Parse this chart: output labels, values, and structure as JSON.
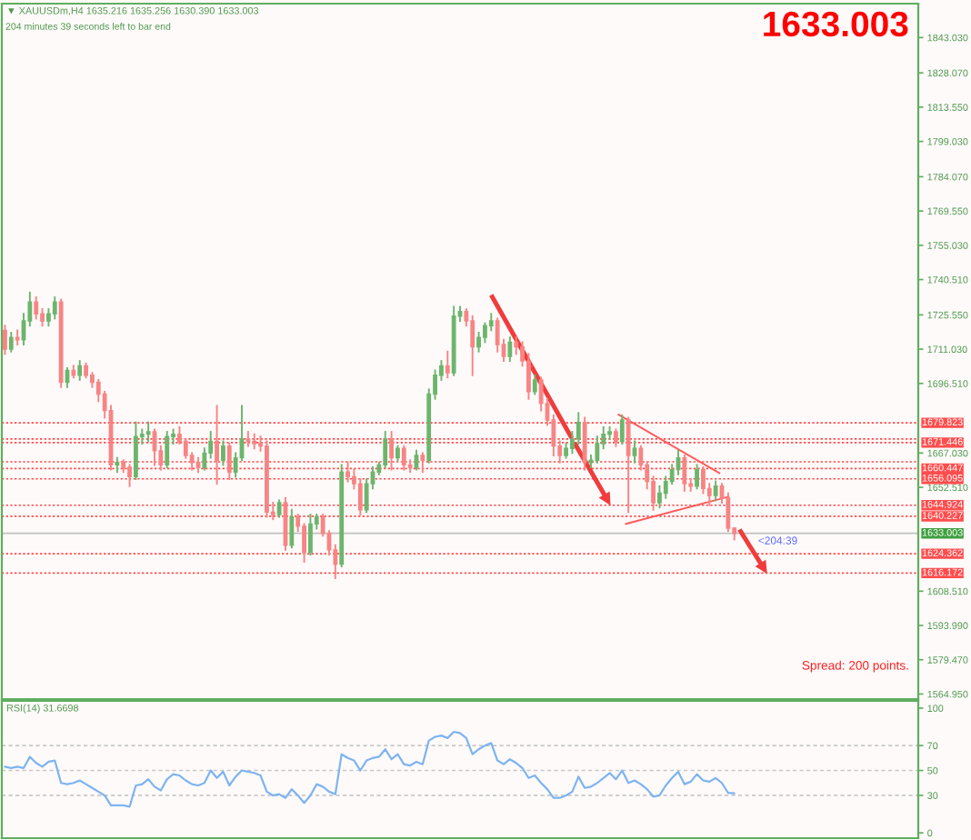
{
  "chart_data": [
    {
      "type": "candlestick",
      "title": "▼ XAUUSDm,H4 1635.216 1635.256 1630.390 1633.003",
      "subtitle": "204 minutes 39 seconds left to bar end",
      "categories": [
        null,
        null,
        null,
        null,
        null,
        null,
        null,
        null,
        null,
        null,
        null,
        null,
        null,
        null,
        null,
        null,
        null,
        null,
        null,
        null,
        null,
        null,
        null,
        null,
        null,
        null,
        null,
        null,
        null,
        null,
        null,
        null,
        null,
        null,
        null,
        null,
        null,
        null,
        null,
        null,
        null,
        null,
        null,
        null,
        null,
        null,
        null,
        null,
        null,
        null,
        null,
        null,
        null,
        null,
        null,
        null,
        null,
        null,
        null,
        null,
        null,
        null,
        null,
        null,
        null,
        null,
        null,
        null,
        null,
        null,
        null,
        null,
        null,
        null,
        null,
        null,
        null,
        null,
        null,
        null,
        null,
        null,
        null,
        null,
        null,
        null,
        null,
        null,
        null,
        null,
        null,
        null,
        null,
        null,
        null,
        null,
        null,
        null,
        null,
        null,
        null,
        null,
        null,
        null,
        null,
        null,
        null,
        null,
        null,
        null,
        null,
        null,
        null,
        null,
        null,
        null,
        null,
        null,
        null,
        null,
        null,
        null,
        null,
        null,
        null,
        null,
        null,
        null,
        null,
        null,
        null,
        null,
        null,
        null,
        null,
        null,
        null,
        null,
        null,
        null,
        null,
        null,
        null,
        null,
        null,
        null,
        null
      ],
      "ohlc": [
        [
          1719,
          1721,
          1709,
          1711
        ],
        [
          1711,
          1718,
          1710,
          1716
        ],
        [
          1716,
          1719,
          1713,
          1715
        ],
        [
          1715,
          1726,
          1713,
          1723
        ],
        [
          1723,
          1735,
          1721,
          1731
        ],
        [
          1731,
          1733,
          1724,
          1726
        ],
        [
          1726,
          1728,
          1721,
          1723
        ],
        [
          1723,
          1728,
          1721,
          1726
        ],
        [
          1726,
          1733,
          1724,
          1731
        ],
        [
          1731,
          1732,
          1695,
          1697
        ],
        [
          1697,
          1703,
          1695,
          1702
        ],
        [
          1702,
          1704,
          1699,
          1700
        ],
        [
          1700,
          1706,
          1698,
          1704
        ],
        [
          1704,
          1705,
          1699,
          1700
        ],
        [
          1700,
          1701,
          1695,
          1697
        ],
        [
          1697,
          1698,
          1689,
          1692
        ],
        [
          1692,
          1693,
          1682,
          1685
        ],
        [
          1685,
          1687,
          1660,
          1662
        ],
        [
          1662,
          1665,
          1659,
          1663
        ],
        [
          1663,
          1664,
          1659,
          1661
        ],
        [
          1661,
          1662,
          1653,
          1657
        ],
        [
          1657,
          1680,
          1656,
          1674
        ],
        [
          1674,
          1677,
          1671,
          1675
        ],
        [
          1675,
          1680,
          1672,
          1676
        ],
        [
          1676,
          1677,
          1662,
          1668
        ],
        [
          1668,
          1670,
          1660,
          1662
        ],
        [
          1662,
          1676,
          1661,
          1674
        ],
        [
          1674,
          1677,
          1671,
          1675
        ],
        [
          1675,
          1678,
          1671,
          1672
        ],
        [
          1672,
          1673,
          1665,
          1666
        ],
        [
          1666,
          1667,
          1660,
          1663
        ],
        [
          1663,
          1665,
          1659,
          1661
        ],
        [
          1661,
          1669,
          1660,
          1667
        ],
        [
          1667,
          1676,
          1665,
          1672
        ],
        [
          1672,
          1687,
          1654,
          1664
        ],
        [
          1664,
          1672,
          1662,
          1670
        ],
        [
          1670,
          1671,
          1656,
          1659
        ],
        [
          1659,
          1667,
          1657,
          1665
        ],
        [
          1665,
          1687,
          1664,
          1673
        ],
        [
          1673,
          1676,
          1670,
          1672
        ],
        [
          1672,
          1675,
          1669,
          1671
        ],
        [
          1671,
          1674,
          1668,
          1670
        ],
        [
          1670,
          1672,
          1640,
          1642
        ],
        [
          1642,
          1646,
          1639,
          1641
        ],
        [
          1641,
          1647,
          1640,
          1646
        ],
        [
          1646,
          1648,
          1626,
          1628
        ],
        [
          1628,
          1643,
          1627,
          1640
        ],
        [
          1640,
          1641,
          1634,
          1636
        ],
        [
          1636,
          1637,
          1621,
          1625
        ],
        [
          1625,
          1641,
          1624,
          1637
        ],
        [
          1637,
          1641,
          1635,
          1640
        ],
        [
          1640,
          1641,
          1632,
          1633
        ],
        [
          1633,
          1634,
          1624,
          1626
        ],
        [
          1626,
          1628,
          1614,
          1620
        ],
        [
          1620,
          1662,
          1619,
          1659
        ],
        [
          1659,
          1663,
          1655,
          1657
        ],
        [
          1657,
          1660,
          1652,
          1654
        ],
        [
          1654,
          1656,
          1641,
          1643
        ],
        [
          1643,
          1656,
          1642,
          1654
        ],
        [
          1654,
          1661,
          1652,
          1659
        ],
        [
          1659,
          1663,
          1658,
          1662
        ],
        [
          1662,
          1676,
          1661,
          1673
        ],
        [
          1673,
          1676,
          1660,
          1665
        ],
        [
          1665,
          1670,
          1664,
          1669
        ],
        [
          1669,
          1670,
          1660,
          1662
        ],
        [
          1662,
          1664,
          1659,
          1661
        ],
        [
          1661,
          1668,
          1660,
          1666
        ],
        [
          1666,
          1667,
          1659,
          1664
        ],
        [
          1664,
          1694,
          1663,
          1692
        ],
        [
          1692,
          1702,
          1690,
          1700
        ],
        [
          1700,
          1706,
          1698,
          1704
        ],
        [
          1704,
          1710,
          1699,
          1701
        ],
        [
          1701,
          1729,
          1700,
          1725
        ],
        [
          1725,
          1729,
          1723,
          1727
        ],
        [
          1727,
          1728,
          1721,
          1723
        ],
        [
          1723,
          1725,
          1700,
          1712
        ],
        [
          1712,
          1718,
          1710,
          1716
        ],
        [
          1716,
          1722,
          1714,
          1721
        ],
        [
          1721,
          1726,
          1719,
          1723
        ],
        [
          1723,
          1724,
          1710,
          1713
        ],
        [
          1713,
          1715,
          1706,
          1708
        ],
        [
          1708,
          1716,
          1706,
          1714
        ],
        [
          1714,
          1716,
          1709,
          1712
        ],
        [
          1712,
          1714,
          1704,
          1706
        ],
        [
          1706,
          1709,
          1690,
          1693
        ],
        [
          1693,
          1700,
          1692,
          1698
        ],
        [
          1698,
          1699,
          1685,
          1688
        ],
        [
          1688,
          1690,
          1679,
          1681
        ],
        [
          1681,
          1683,
          1666,
          1670
        ],
        [
          1670,
          1672,
          1663,
          1666
        ],
        [
          1666,
          1671,
          1665,
          1669
        ],
        [
          1669,
          1676,
          1667,
          1673
        ],
        [
          1673,
          1684,
          1671,
          1680
        ],
        [
          1680,
          1682,
          1660,
          1663
        ],
        [
          1663,
          1666,
          1661,
          1664
        ],
        [
          1664,
          1674,
          1663,
          1671
        ],
        [
          1671,
          1678,
          1669,
          1675
        ],
        [
          1675,
          1678,
          1673,
          1676
        ],
        [
          1676,
          1677,
          1670,
          1672
        ],
        [
          1672,
          1683,
          1671,
          1681
        ],
        [
          1681,
          1682,
          1642,
          1666
        ],
        [
          1666,
          1672,
          1663,
          1669
        ],
        [
          1669,
          1670,
          1660,
          1662
        ],
        [
          1662,
          1663,
          1652,
          1655
        ],
        [
          1655,
          1657,
          1643,
          1646
        ],
        [
          1646,
          1653,
          1644,
          1650
        ],
        [
          1650,
          1657,
          1648,
          1655
        ],
        [
          1655,
          1662,
          1654,
          1660
        ],
        [
          1660,
          1668,
          1658,
          1665
        ],
        [
          1665,
          1666,
          1651,
          1654
        ],
        [
          1654,
          1656,
          1651,
          1653
        ],
        [
          1653,
          1662,
          1652,
          1660
        ],
        [
          1660,
          1661,
          1650,
          1652
        ],
        [
          1652,
          1654,
          1645,
          1649
        ],
        [
          1649,
          1655,
          1647,
          1653
        ],
        [
          1653,
          1654,
          1646,
          1648
        ],
        [
          1648,
          1650,
          1634,
          1635.216
        ],
        [
          1635.216,
          1635.256,
          1630.39,
          1633.003
        ],
        null,
        null,
        null,
        null,
        null,
        null,
        null,
        null,
        null,
        null,
        null,
        null,
        null,
        null,
        null,
        null,
        null,
        null,
        null,
        null,
        null,
        null,
        null,
        null,
        null,
        null,
        null,
        null,
        null
      ],
      "colors": [
        "#f78585",
        "#6db56d",
        "#f78585",
        "#6db56d",
        "#6db56d",
        "#f78585",
        "#f78585",
        "#6db56d",
        "#6db56d",
        "#f78585",
        "#6db56d",
        "#f78585",
        "#6db56d",
        "#f78585",
        "#f78585",
        "#f78585",
        "#f78585",
        "#f78585",
        "#6db56d",
        "#f78585",
        "#f78585",
        "#6db56d",
        "#6db56d",
        "#6db56d",
        "#f78585",
        "#f78585",
        "#6db56d",
        "#6db56d",
        "#f78585",
        "#f78585",
        "#f78585",
        "#f78585",
        "#6db56d",
        "#6db56d",
        "#f78585",
        "#6db56d",
        "#f78585",
        "#6db56d",
        "#6db56d",
        "#f78585",
        "#f78585",
        "#f78585",
        "#f78585",
        "#f78585",
        "#6db56d",
        "#f78585",
        "#6db56d",
        "#f78585",
        "#f78585",
        "#6db56d",
        "#6db56d",
        "#f78585",
        "#f78585",
        "#f78585",
        "#6db56d",
        "#f78585",
        "#f78585",
        "#f78585",
        "#6db56d",
        "#6db56d",
        "#6db56d",
        "#6db56d",
        "#f78585",
        "#6db56d",
        "#f78585",
        "#f78585",
        "#6db56d",
        "#f78585",
        "#6db56d",
        "#6db56d",
        "#6db56d",
        "#f78585",
        "#6db56d",
        "#6db56d",
        "#f78585",
        "#f78585",
        "#6db56d",
        "#6db56d",
        "#6db56d",
        "#f78585",
        "#f78585",
        "#6db56d",
        "#f78585",
        "#f78585",
        "#f78585",
        "#6db56d",
        "#f78585",
        "#f78585",
        "#f78585",
        "#f78585",
        "#6db56d",
        "#6db56d",
        "#6db56d",
        "#f78585",
        "#6db56d",
        "#6db56d",
        "#6db56d",
        "#6db56d",
        "#f78585",
        "#6db56d",
        "#f78585",
        "#6db56d",
        "#f78585",
        "#f78585",
        "#f78585",
        "#6db56d",
        "#6db56d",
        "#6db56d",
        "#6db56d",
        "#f78585",
        "#f78585",
        "#6db56d",
        "#f78585",
        "#f78585",
        "#6db56d",
        "#f78585",
        "#f78585",
        "#f78585",
        null,
        null,
        null,
        null,
        null,
        null,
        null,
        null,
        null,
        null,
        null,
        null,
        null,
        null,
        null,
        null,
        null,
        null,
        null,
        null,
        null,
        null,
        null,
        null,
        null,
        null,
        null,
        null,
        null
      ],
      "ylim": [
        1562.8,
        1857.4
      ],
      "yticks": [
        {
          "value": 1843.03,
          "label": "1843.030"
        },
        {
          "value": 1828.07,
          "label": "1828.070"
        },
        {
          "value": 1813.55,
          "label": "1813.550"
        },
        {
          "value": 1799.03,
          "label": "1799.030"
        },
        {
          "value": 1784.07,
          "label": "1784.070"
        },
        {
          "value": 1769.55,
          "label": "1769.550"
        },
        {
          "value": 1755.03,
          "label": "1755.030"
        },
        {
          "value": 1740.51,
          "label": "1740.510"
        },
        {
          "value": 1725.55,
          "label": "1725.550"
        },
        {
          "value": 1711.03,
          "label": "1711.030"
        },
        {
          "value": 1696.51,
          "label": "1696.510"
        },
        {
          "value": 1667.03,
          "label": "1667.030"
        },
        {
          "value": 1652.51,
          "label": "1652.510"
        },
        {
          "value": 1608.51,
          "label": "1608.510"
        },
        {
          "value": 1593.99,
          "label": "1593.990"
        },
        {
          "value": 1579.47,
          "label": "1579.470"
        },
        {
          "value": 1564.95,
          "label": "1564.950"
        }
      ],
      "tick_labels": "y",
      "ref_lines": [
        {
          "axis": "y",
          "value": 1679.823,
          "label": "1679.823",
          "color": "#ff4d4d",
          "line_style": "dotted"
        },
        {
          "axis": "y",
          "value": 1673.0,
          "color": "#ff4d4d",
          "line_style": "dotted"
        },
        {
          "axis": "y",
          "value": 1671.446,
          "label": "1671.446",
          "color": "#ff4d4d",
          "line_style": "dotted"
        },
        {
          "axis": "y",
          "value": 1663.3,
          "color": "#ff4d4d",
          "line_style": "dotted"
        },
        {
          "axis": "y",
          "value": 1660.447,
          "label": "1660.447",
          "color": "#ff4d4d",
          "line_style": "dotted"
        },
        {
          "axis": "y",
          "value": 1656.095,
          "label": "1656.095",
          "color": "#ff4d4d",
          "line_style": "dotted"
        },
        {
          "axis": "y",
          "value": 1644.924,
          "label": "1644.924",
          "color": "#ff4d4d",
          "line_style": "dotted"
        },
        {
          "axis": "y",
          "value": 1640.227,
          "label": "1640.227",
          "color": "#ff4d4d",
          "line_style": "dotted"
        },
        {
          "axis": "y",
          "value": 1633.003,
          "label": "1633.003",
          "color": "#c0c0c0",
          "line_style": "solid"
        },
        {
          "axis": "y",
          "value": 1624.362,
          "label": "1624.362",
          "color": "#ff4d4d",
          "line_style": "dotted"
        },
        {
          "axis": "y",
          "value": 1616.172,
          "label": "1616.172",
          "color": "#ff4d4d",
          "line_style": "dotted"
        }
      ],
      "annotations": [
        "1633.003",
        "<204:39",
        "Spread: 200 points."
      ]
    },
    {
      "type": "line",
      "title": "RSI(14) 31.6698",
      "categories": [
        null,
        null,
        null,
        null,
        null,
        null,
        null,
        null,
        null,
        null,
        null,
        null,
        null,
        null,
        null,
        null,
        null,
        null,
        null,
        null,
        null,
        null,
        null,
        null,
        null,
        null,
        null,
        null,
        null,
        null,
        null,
        null,
        null,
        null,
        null,
        null,
        null,
        null,
        null,
        null,
        null,
        null,
        null,
        null,
        null,
        null,
        null,
        null,
        null,
        null,
        null,
        null,
        null,
        null,
        null,
        null,
        null,
        null,
        null,
        null,
        null,
        null,
        null,
        null,
        null,
        null,
        null,
        null,
        null,
        null,
        null,
        null,
        null,
        null,
        null,
        null,
        null,
        null,
        null,
        null,
        null,
        null,
        null,
        null,
        null,
        null,
        null,
        null,
        null,
        null,
        null,
        null,
        null,
        null,
        null,
        null,
        null,
        null,
        null,
        null,
        null,
        null,
        null,
        null,
        null,
        null,
        null,
        null,
        null,
        null,
        null,
        null,
        null,
        null,
        null,
        null,
        null,
        null,
        null,
        null,
        null,
        null,
        null,
        null,
        null,
        null,
        null,
        null,
        null,
        null,
        null,
        null,
        null,
        null,
        null,
        null,
        null,
        null,
        null,
        null,
        null,
        null,
        null,
        null,
        null,
        null,
        null
      ],
      "values": [
        53,
        52,
        53,
        52,
        61,
        56,
        53,
        57,
        58,
        40,
        39,
        40,
        42,
        39,
        36,
        33,
        30,
        22,
        22,
        22,
        21,
        38,
        39,
        43,
        37,
        34,
        43,
        47,
        46,
        42,
        39,
        38,
        40,
        50,
        44,
        49,
        38,
        45,
        50,
        49,
        48,
        46,
        33,
        30,
        31,
        28,
        35,
        30,
        24,
        30,
        39,
        37,
        33,
        31,
        63,
        60,
        58,
        50,
        58,
        60,
        61,
        67,
        59,
        63,
        55,
        54,
        57,
        55,
        74,
        77,
        78,
        76,
        81,
        80,
        76,
        63,
        67,
        70,
        72,
        58,
        55,
        59,
        56,
        52,
        44,
        46,
        40,
        35,
        28,
        28,
        30,
        33,
        45,
        36,
        37,
        40,
        44,
        48,
        43,
        50,
        40,
        42,
        39,
        35,
        29,
        30,
        38,
        44,
        49,
        39,
        41,
        47,
        42,
        41,
        44,
        40,
        32,
        31.6698,
        null,
        null,
        null,
        null,
        null,
        null,
        null,
        null,
        null,
        null,
        null,
        null,
        null,
        null,
        null,
        null,
        null,
        null,
        null,
        null,
        null,
        null,
        null,
        null,
        null,
        null,
        null,
        null,
        null
      ],
      "color": "#7db4f0",
      "ylim": [
        -4.3,
        105.8
      ],
      "yticks": [
        0,
        30,
        50,
        70,
        100
      ],
      "tick_labels": "y",
      "ref_lines": [
        {
          "axis": "y",
          "value": 70,
          "color": "#c8c8c8",
          "line_style": "dashed"
        },
        {
          "axis": "y",
          "value": 50,
          "color": "#c8c8c8",
          "line_style": "dashed"
        },
        {
          "axis": "y",
          "value": 30,
          "color": "#c8c8c8",
          "line_style": "dashed"
        }
      ]
    }
  ]
}
